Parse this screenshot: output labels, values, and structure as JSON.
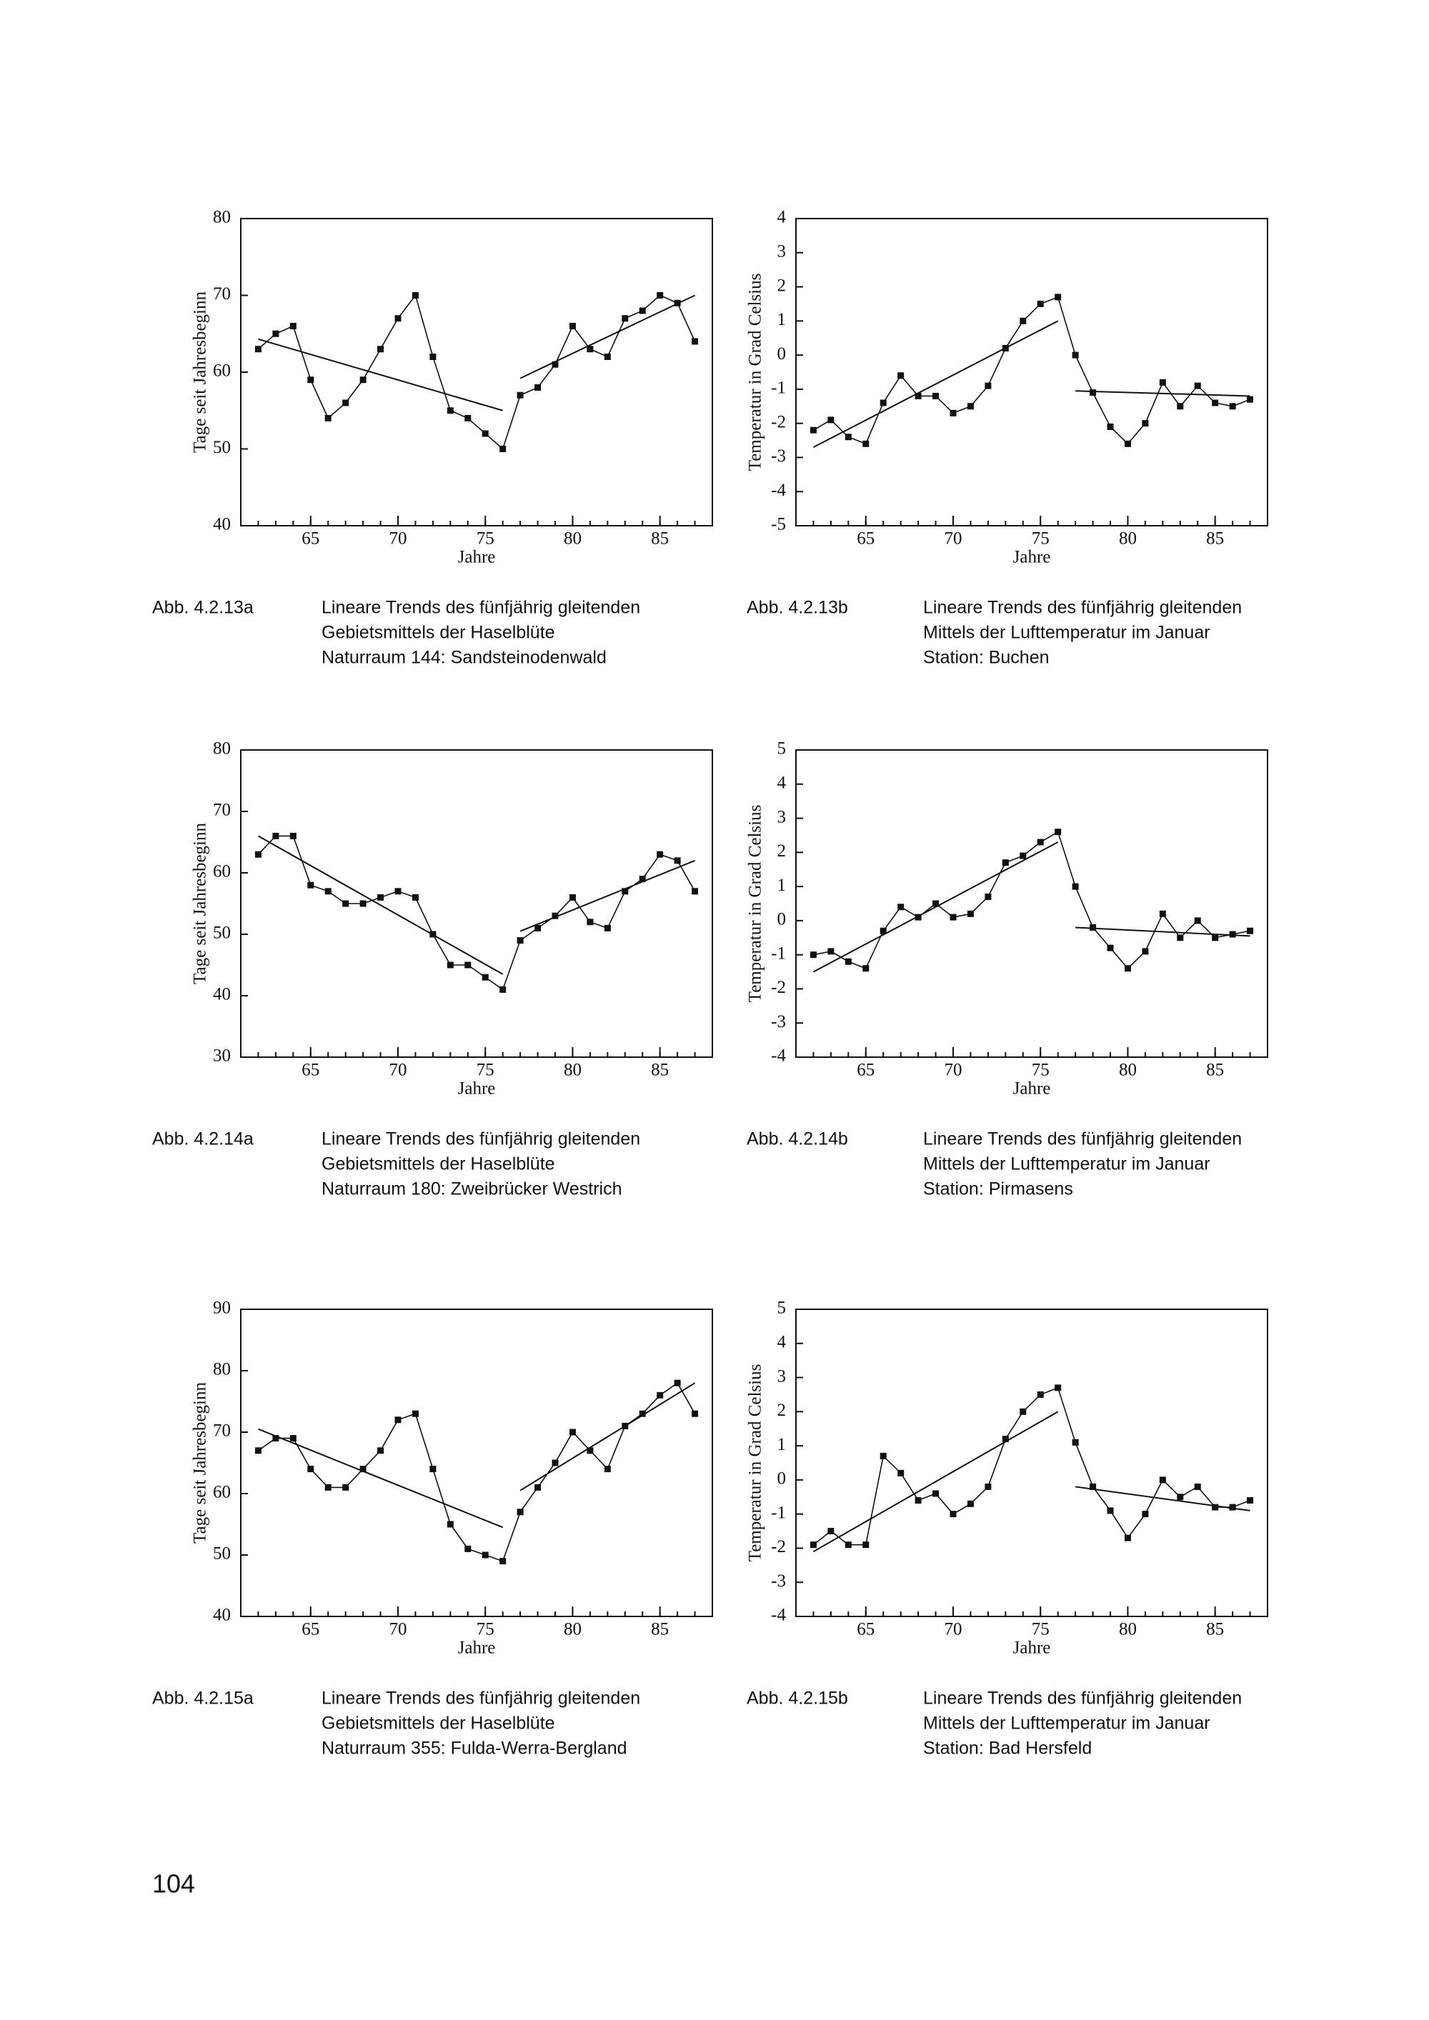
{
  "chart_data": [
    {
      "type": "line",
      "figure_label": "Abb. 4.2.13a",
      "caption": [
        "Lineare Trends des fünfjährig gleitenden",
        "Gebietsmittels der Haselblüte",
        "Naturraum 144: Sandsteinodenwald"
      ],
      "xlabel": "Jahre",
      "ylabel": "Tage seit Jahresbeginn",
      "color": "#111",
      "x": [
        62,
        63,
        64,
        65,
        66,
        67,
        68,
        69,
        70,
        71,
        72,
        73,
        74,
        75,
        76,
        77,
        78,
        79,
        80,
        81,
        82,
        83,
        84,
        85,
        86,
        87
      ],
      "values": [
        63,
        65,
        66,
        59,
        54,
        56,
        59,
        63,
        67,
        70,
        62,
        55,
        54,
        52,
        50,
        57,
        58,
        61,
        66,
        63,
        62,
        67,
        68,
        70,
        69,
        64
      ],
      "trends": [
        {
          "x": [
            62,
            76
          ],
          "values": [
            64.3,
            55
          ]
        },
        {
          "x": [
            77,
            87
          ],
          "values": [
            59.2,
            70
          ]
        }
      ],
      "xlim": [
        61,
        88
      ],
      "xticks": [
        65,
        70,
        75,
        80,
        85
      ],
      "ylim": [
        40,
        80
      ],
      "yticks": [
        40,
        50,
        60,
        70,
        80
      ]
    },
    {
      "type": "line",
      "figure_label": "Abb. 4.2.13b",
      "caption": [
        "Lineare Trends des fünfjährig gleitenden",
        "Mittels der Lufttemperatur im Januar",
        "Station: Buchen"
      ],
      "xlabel": "Jahre",
      "ylabel": "Temperatur in Grad Celsius",
      "color": "#111",
      "x": [
        62,
        63,
        64,
        65,
        66,
        67,
        68,
        69,
        70,
        71,
        72,
        73,
        74,
        75,
        76,
        77,
        78,
        79,
        80,
        81,
        82,
        83,
        84,
        85,
        86,
        87
      ],
      "values": [
        -2.2,
        -1.9,
        -2.4,
        -2.6,
        -1.4,
        -0.6,
        -1.2,
        -1.2,
        -1.7,
        -1.5,
        -0.9,
        0.2,
        1.0,
        1.5,
        1.7,
        0.0,
        -1.1,
        -2.1,
        -2.6,
        -2.0,
        -0.8,
        -1.5,
        -0.9,
        -1.4,
        -1.5,
        -1.3
      ],
      "trends": [
        {
          "x": [
            62,
            76
          ],
          "values": [
            -2.7,
            1.0
          ]
        },
        {
          "x": [
            77,
            87
          ],
          "values": [
            -1.05,
            -1.2
          ]
        }
      ],
      "xlim": [
        61,
        88
      ],
      "xticks": [
        65,
        70,
        75,
        80,
        85
      ],
      "ylim": [
        -5,
        4
      ],
      "yticks": [
        -5,
        -4,
        -3,
        -2,
        -1,
        0,
        1,
        2,
        3,
        4
      ]
    },
    {
      "type": "line",
      "figure_label": "Abb. 4.2.14a",
      "caption": [
        "Lineare Trends des fünfjährig gleitenden",
        "Gebietsmittels der Haselblüte",
        "Naturraum 180: Zweibrücker Westrich"
      ],
      "xlabel": "Jahre",
      "ylabel": "Tage seit Jahresbeginn",
      "color": "#111",
      "x": [
        62,
        63,
        64,
        65,
        66,
        67,
        68,
        69,
        70,
        71,
        72,
        73,
        74,
        75,
        76,
        77,
        78,
        79,
        80,
        81,
        82,
        83,
        84,
        85,
        86,
        87
      ],
      "values": [
        63,
        66,
        66,
        58,
        57,
        55,
        55,
        56,
        57,
        56,
        50,
        45,
        45,
        43,
        41,
        49,
        51,
        53,
        56,
        52,
        51,
        57,
        59,
        63,
        62,
        57
      ],
      "trends": [
        {
          "x": [
            62,
            76
          ],
          "values": [
            66,
            43.5
          ]
        },
        {
          "x": [
            77,
            87
          ],
          "values": [
            50.5,
            62
          ]
        }
      ],
      "xlim": [
        61,
        88
      ],
      "xticks": [
        65,
        70,
        75,
        80,
        85
      ],
      "ylim": [
        30,
        80
      ],
      "yticks": [
        30,
        40,
        50,
        60,
        70,
        80
      ]
    },
    {
      "type": "line",
      "figure_label": "Abb. 4.2.14b",
      "caption": [
        "Lineare Trends des fünfjährig gleitenden",
        "Mittels der Lufttemperatur im Januar",
        "Station: Pirmasens"
      ],
      "xlabel": "Jahre",
      "ylabel": "Temperatur in Grad Celsius",
      "color": "#111",
      "x": [
        62,
        63,
        64,
        65,
        66,
        67,
        68,
        69,
        70,
        71,
        72,
        73,
        74,
        75,
        76,
        77,
        78,
        79,
        80,
        81,
        82,
        83,
        84,
        85,
        86,
        87
      ],
      "values": [
        -1.0,
        -0.9,
        -1.2,
        -1.4,
        -0.3,
        0.4,
        0.1,
        0.5,
        0.1,
        0.2,
        0.7,
        1.7,
        1.9,
        2.3,
        2.6,
        1.0,
        -0.2,
        -0.8,
        -1.4,
        -0.9,
        0.2,
        -0.5,
        0.0,
        -0.5,
        -0.4,
        -0.3
      ],
      "trends": [
        {
          "x": [
            62,
            76
          ],
          "values": [
            -1.5,
            2.3
          ]
        },
        {
          "x": [
            77,
            87
          ],
          "values": [
            -0.2,
            -0.45
          ]
        }
      ],
      "xlim": [
        61,
        88
      ],
      "xticks": [
        65,
        70,
        75,
        80,
        85
      ],
      "ylim": [
        -4,
        5
      ],
      "yticks": [
        -4,
        -3,
        -2,
        -1,
        0,
        1,
        2,
        3,
        4,
        5
      ]
    },
    {
      "type": "line",
      "figure_label": "Abb. 4.2.15a",
      "caption": [
        "Lineare Trends des fünfjährig gleitenden",
        "Gebietsmittels der Haselblüte",
        "Naturraum 355: Fulda-Werra-Bergland"
      ],
      "xlabel": "Jahre",
      "ylabel": "Tage seit Jahresbeginn",
      "color": "#111",
      "x": [
        62,
        63,
        64,
        65,
        66,
        67,
        68,
        69,
        70,
        71,
        72,
        73,
        74,
        75,
        76,
        77,
        78,
        79,
        80,
        81,
        82,
        83,
        84,
        85,
        86,
        87
      ],
      "values": [
        67,
        69,
        69,
        64,
        61,
        61,
        64,
        67,
        72,
        73,
        64,
        55,
        51,
        50,
        49,
        57,
        61,
        65,
        70,
        67,
        64,
        71,
        73,
        76,
        78,
        73
      ],
      "trends": [
        {
          "x": [
            62,
            76
          ],
          "values": [
            70.5,
            54.5
          ]
        },
        {
          "x": [
            77,
            87
          ],
          "values": [
            60.5,
            78
          ]
        }
      ],
      "xlim": [
        61,
        88
      ],
      "xticks": [
        65,
        70,
        75,
        80,
        85
      ],
      "ylim": [
        40,
        90
      ],
      "yticks": [
        40,
        50,
        60,
        70,
        80,
        90
      ]
    },
    {
      "type": "line",
      "figure_label": "Abb. 4.2.15b",
      "caption": [
        "Lineare Trends des fünfjährig gleitenden",
        "Mittels der Lufttemperatur im Januar",
        "Station: Bad Hersfeld"
      ],
      "xlabel": "Jahre",
      "ylabel": "Temperatur in Grad Celsius",
      "color": "#111",
      "x": [
        62,
        63,
        64,
        65,
        66,
        67,
        68,
        69,
        70,
        71,
        72,
        73,
        74,
        75,
        76,
        77,
        78,
        79,
        80,
        81,
        82,
        83,
        84,
        85,
        86,
        87
      ],
      "values": [
        -1.9,
        -1.5,
        -1.9,
        -1.9,
        0.7,
        0.2,
        -0.6,
        -0.4,
        -1.0,
        -0.7,
        -0.2,
        1.2,
        2.0,
        2.5,
        2.7,
        1.1,
        -0.2,
        -0.9,
        -1.7,
        -1.0,
        0.0,
        -0.5,
        -0.2,
        -0.8,
        -0.8,
        -0.6
      ],
      "trends": [
        {
          "x": [
            62,
            76
          ],
          "values": [
            -2.1,
            2.0
          ]
        },
        {
          "x": [
            77,
            87
          ],
          "values": [
            -0.2,
            -0.9
          ]
        }
      ],
      "xlim": [
        61,
        88
      ],
      "xticks": [
        65,
        70,
        75,
        80,
        85
      ],
      "ylim": [
        -4,
        5
      ],
      "yticks": [
        -4,
        -3,
        -2,
        -1,
        0,
        1,
        2,
        3,
        4,
        5
      ]
    }
  ],
  "page_number": "104"
}
